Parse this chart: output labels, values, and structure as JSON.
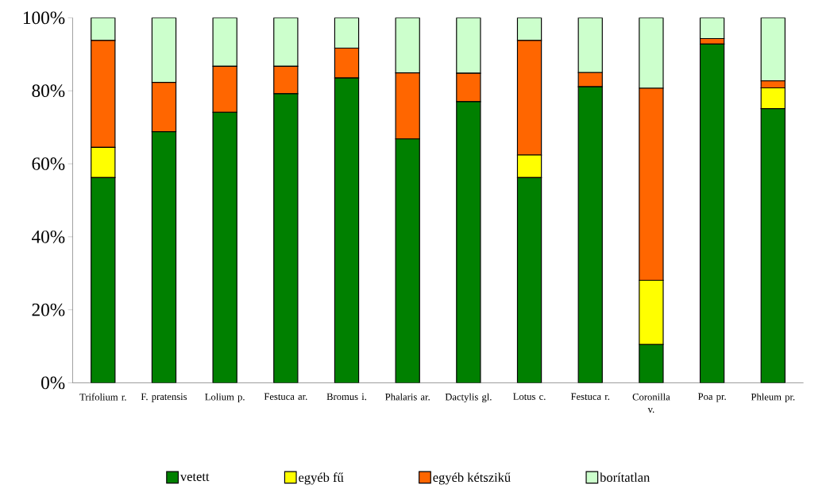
{
  "chart_data": {
    "type": "bar",
    "stacked": true,
    "categories": [
      "Trifolium r.",
      "F. pratensis",
      "Lolium p.",
      "Festuca ar.",
      "Bromus i.",
      "Phalaris ar.",
      "Dactylis gl.",
      "Lotus c.",
      "Festuca r.",
      "Coronilla v.",
      "Poa pr.",
      "Phleum pr."
    ],
    "series": [
      {
        "name": "vetett",
        "color": "#008000",
        "values": [
          56.2,
          68.8,
          74.1,
          79.2,
          83.5,
          66.8,
          77.0,
          56.2,
          81.1,
          10.5,
          92.8,
          75.1
        ]
      },
      {
        "name": "egyéb fű",
        "color": "#ffff00",
        "values": [
          8.3,
          0,
          0,
          0,
          0,
          0,
          0,
          6.2,
          0,
          17.6,
          0,
          5.7
        ]
      },
      {
        "name": "egyéb kétszikű",
        "color": "#ff6600",
        "values": [
          29.3,
          13.5,
          12.6,
          7.5,
          8.2,
          18.1,
          7.8,
          31.4,
          3.9,
          52.6,
          1.5,
          1.9
        ]
      },
      {
        "name": "borítatlan",
        "color": "#ccffcc",
        "values": [
          6.2,
          17.7,
          13.3,
          13.3,
          8.3,
          15.1,
          15.2,
          6.2,
          15.0,
          19.3,
          5.7,
          17.3
        ]
      }
    ],
    "ylim": [
      0,
      100
    ],
    "yticks": [
      {
        "value": 0,
        "label": "0%"
      },
      {
        "value": 20,
        "label": "20%"
      },
      {
        "value": 40,
        "label": "40%"
      },
      {
        "value": 60,
        "label": "60%"
      },
      {
        "value": 80,
        "label": "80%"
      },
      {
        "value": 100,
        "label": "100%"
      }
    ],
    "legend": "bottom"
  }
}
